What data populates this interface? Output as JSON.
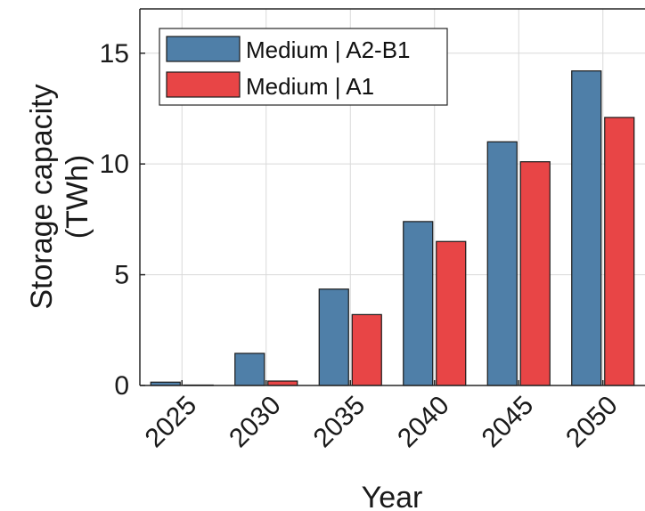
{
  "chart_data": {
    "type": "bar",
    "categories": [
      "2025",
      "2030",
      "2035",
      "2040",
      "2045",
      "2050"
    ],
    "series": [
      {
        "name": "Medium | A2-B1",
        "color": "#4f7fa8",
        "values": [
          0.15,
          1.45,
          4.35,
          7.4,
          11.0,
          14.2
        ]
      },
      {
        "name": "Medium | A1",
        "color": "#e84546",
        "values": [
          0.02,
          0.2,
          3.2,
          6.5,
          10.1,
          12.1
        ]
      }
    ],
    "xlabel": "Year",
    "ylabel": [
      "Storage capacity",
      "(TWh)"
    ],
    "ylim": [
      0,
      17
    ],
    "yticks": [
      0,
      5,
      10,
      15
    ],
    "grid": true,
    "legend_position": "top-left"
  }
}
